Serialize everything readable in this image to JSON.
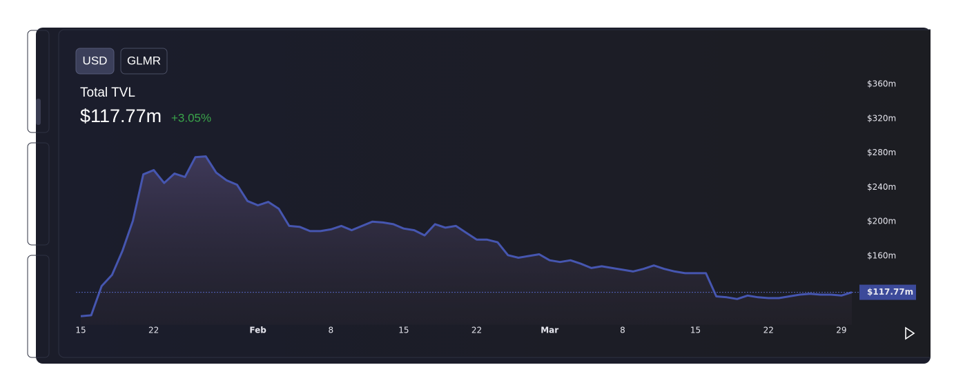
{
  "buttons": [
    "USD",
    "GLMR"
  ],
  "chart_data": {
    "type": "area",
    "title": "Total TVL",
    "change": "+3.05%",
    "x": [
      0,
      1,
      2,
      3,
      4,
      5,
      6,
      7,
      8,
      9,
      10,
      11,
      12,
      13,
      14,
      15,
      16,
      17,
      18,
      19,
      20,
      21,
      22,
      23,
      24,
      25,
      26,
      27,
      28,
      29,
      30,
      31,
      32,
      33,
      34,
      35,
      36,
      37,
      38,
      39,
      40,
      41,
      42,
      43,
      44,
      45,
      46,
      47,
      48,
      49,
      50,
      51,
      52,
      53,
      54,
      55,
      56,
      57,
      58,
      59,
      60,
      61,
      62,
      63,
      64,
      65,
      66,
      67,
      68,
      69,
      70,
      71,
      72,
      73,
      74
    ],
    "values": [
      90,
      91,
      125,
      138,
      166,
      201,
      255,
      260,
      245,
      256,
      252,
      275,
      276,
      257,
      248,
      243,
      224,
      219,
      223,
      215,
      195,
      194,
      189,
      189,
      191,
      195,
      190,
      195,
      200,
      199,
      197,
      192,
      190,
      184,
      197,
      193,
      195,
      187,
      179,
      179,
      176,
      161,
      158,
      160,
      162,
      155,
      153,
      155,
      151,
      146,
      148,
      146,
      144,
      142,
      145,
      149,
      145,
      142,
      140,
      140,
      140,
      113,
      112,
      110,
      114,
      112,
      111,
      111,
      113,
      115,
      116,
      115,
      115,
      114,
      117.77
    ],
    "color": "#4656b0",
    "last_value": {
      "value": 117.77,
      "label": "$117.77m"
    },
    "xlim": [
      0,
      74.4
    ],
    "xticks": [
      {
        "value": 0,
        "label": "15"
      },
      {
        "value": 7,
        "label": "22"
      },
      {
        "value": 17,
        "label": "Feb"
      },
      {
        "value": 24,
        "label": "8"
      },
      {
        "value": 31,
        "label": "15"
      },
      {
        "value": 38,
        "label": "22"
      },
      {
        "value": 45,
        "label": "Mar"
      },
      {
        "value": 52,
        "label": "8"
      },
      {
        "value": 59,
        "label": "15"
      },
      {
        "value": 66,
        "label": "22"
      },
      {
        "value": 73,
        "label": "29"
      }
    ],
    "ylim": [
      80,
      360
    ],
    "yticks": [
      {
        "value": 160,
        "label": "$160m"
      },
      {
        "value": 200,
        "label": "$200m"
      },
      {
        "value": 240,
        "label": "$240m"
      },
      {
        "value": 280,
        "label": "$280m"
      },
      {
        "value": 320,
        "label": "$320m"
      },
      {
        "value": 360,
        "label": "$360m"
      }
    ]
  }
}
